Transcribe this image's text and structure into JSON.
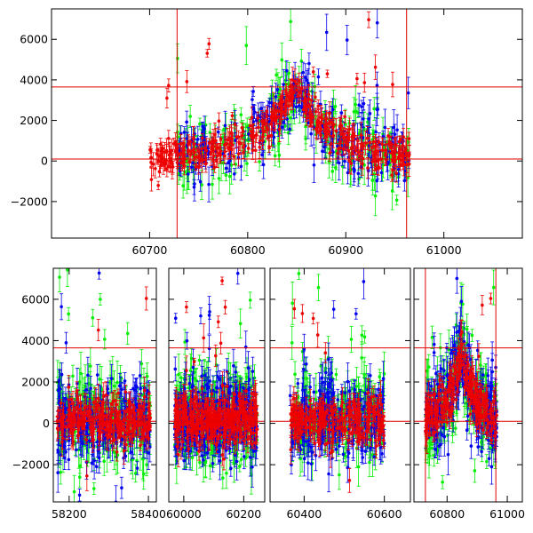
{
  "chart_data": [
    {
      "type": "scatter",
      "title": "",
      "xlabel": "",
      "ylabel": "",
      "xlim": [
        60600,
        61080
      ],
      "ylim": [
        -3800,
        7500
      ],
      "x_ticks": [
        60700,
        60800,
        60900,
        61000
      ],
      "x_tick_labels": [
        "60700",
        "60800",
        "60900",
        "61000"
      ],
      "y_ticks": [
        -2000,
        0,
        2000,
        4000,
        6000
      ],
      "y_tick_labels": [
        "−2000",
        "0",
        "2000",
        "4000",
        "6000"
      ],
      "grid": false,
      "legend": "none",
      "reference_lines": {
        "horizontal": [
          100,
          3650
        ],
        "vertical": [
          60728,
          60962
        ],
        "color": "#e00000"
      },
      "series": [
        {
          "color": "#00ee00",
          "x_range": [
            60728,
            60965
          ],
          "peak_x": 60848,
          "peak_y": 3650,
          "baseline_y": 150,
          "error_bar": 550,
          "scatter": 900
        },
        {
          "color": "#0000ee",
          "x_range": [
            60728,
            60965
          ],
          "peak_x": 60848,
          "peak_y": 3650,
          "baseline_y": 100,
          "error_bar": 500,
          "scatter": 850
        },
        {
          "color": "#ee0000",
          "x_range": [
            60700,
            60965
          ],
          "peak_x": 60848,
          "peak_y": 3650,
          "baseline_y": 100,
          "error_bar": 350,
          "scatter": 420
        }
      ]
    },
    {
      "type": "scatter",
      "title": "",
      "xlabel": "",
      "ylabel": "",
      "panels": [
        {
          "xlim": [
            58160,
            58420
          ],
          "x_ticks": [
            58200,
            58400
          ],
          "x_tick_labels": [
            "58200",
            "58400"
          ]
        },
        {
          "xlim": [
            59950,
            60270
          ],
          "x_ticks": [
            60000,
            60200
          ],
          "x_tick_labels": [
            "60000",
            "60200"
          ]
        },
        {
          "xlim": [
            60315,
            60665
          ],
          "x_ticks": [
            60400,
            60600
          ],
          "x_tick_labels": [
            "60400",
            "60600"
          ]
        },
        {
          "xlim": [
            60690,
            61050
          ],
          "x_ticks": [
            60800,
            61000
          ],
          "x_tick_labels": [
            "60800",
            "61000"
          ]
        }
      ],
      "ylim": [
        -3800,
        7500
      ],
      "y_ticks": [
        -2000,
        0,
        2000,
        4000,
        6000
      ],
      "y_tick_labels": [
        "−2000",
        "0",
        "2000",
        "4000",
        "6000"
      ],
      "grid": false,
      "legend": "none",
      "reference_lines": {
        "horizontal": [
          100,
          3650
        ],
        "vertical": [
          60728,
          60962
        ],
        "color": "#e00000"
      },
      "segments": [
        {
          "x_range": [
            58170,
            58405
          ]
        },
        {
          "x_range": [
            59970,
            60245
          ]
        },
        {
          "x_range": [
            60365,
            60600
          ]
        },
        {
          "x_range": [
            60728,
            60965
          ]
        }
      ],
      "series": [
        {
          "color": "#00ee00",
          "baseline_y": 300,
          "error_bar": 600,
          "scatter": 1100
        },
        {
          "color": "#0000ee",
          "baseline_y": 200,
          "error_bar": 550,
          "scatter": 1000
        },
        {
          "color": "#ee0000",
          "baseline_y": 150,
          "error_bar": 400,
          "scatter": 550,
          "peak_x": 60848,
          "peak_y": 3650
        }
      ]
    }
  ]
}
